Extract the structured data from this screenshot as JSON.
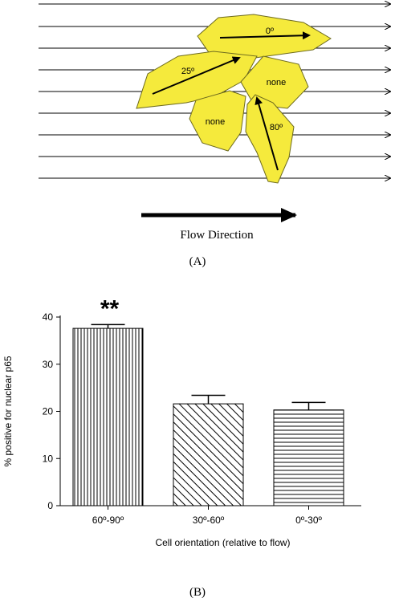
{
  "panel_a": {
    "label": "(A)",
    "flow_label": "Flow Direction",
    "cell_labels": [
      "0º",
      "25º",
      "none",
      "none",
      "80º"
    ],
    "cell_color": "#f5ea3c"
  },
  "panel_b": {
    "label": "(B)"
  },
  "chart_data": {
    "type": "bar",
    "categories": [
      "60º-90º",
      "30º-60º",
      "0º-30º"
    ],
    "values": [
      37.6,
      21.6,
      20.3
    ],
    "errors": [
      0.8,
      1.8,
      1.6
    ],
    "fill_patterns": [
      "vertical-lines",
      "diagonal-lines",
      "horizontal-lines"
    ],
    "annotations": [
      {
        "category": "60º-90º",
        "text": "**"
      }
    ],
    "xlabel": "Cell orientation (relative to flow)",
    "ylabel": "% positive for nuclear p65",
    "ylim": [
      0,
      40
    ],
    "yticks": [
      0,
      10,
      20,
      30,
      40
    ],
    "grid": false
  }
}
